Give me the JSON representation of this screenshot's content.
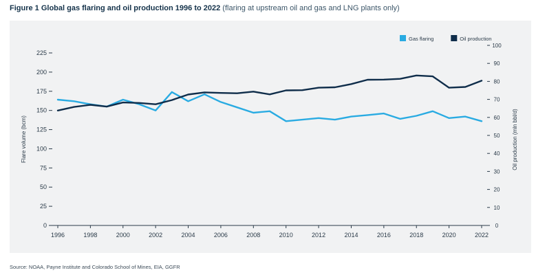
{
  "figure": {
    "title_bold": "Figure 1 Global gas flaring and oil production 1996 to 2022",
    "title_rest": "(flaring at upstream oil and gas and LNG plants only)",
    "source": "Source: NOAA, Payne Institute and Colorado School of Mines, EIA, GGFR"
  },
  "chart_data": {
    "type": "line",
    "x": [
      1996,
      1997,
      1998,
      1999,
      2000,
      2001,
      2002,
      2003,
      2004,
      2005,
      2006,
      2007,
      2008,
      2009,
      2010,
      2011,
      2012,
      2013,
      2014,
      2015,
      2016,
      2017,
      2018,
      2019,
      2020,
      2021,
      2022
    ],
    "x_ticks": [
      "1996",
      "1998",
      "2000",
      "2002",
      "2004",
      "2006",
      "2008",
      "2010",
      "2012",
      "2014",
      "2016",
      "2018",
      "2020",
      "2022"
    ],
    "left_axis": {
      "label": "Flare volume (bcm)",
      "range": [
        0,
        225
      ],
      "ticks": [
        "0",
        "25",
        "50",
        "75",
        "100",
        "125",
        "150",
        "175",
        "200",
        "225"
      ]
    },
    "right_axis": {
      "label": "Oil production (mln bbl/d)",
      "range": [
        0,
        100
      ],
      "ticks": [
        "0",
        "10",
        "20",
        "30",
        "40",
        "50",
        "60",
        "70",
        "80",
        "90",
        "100"
      ]
    },
    "series": [
      {
        "name": "Gas flaring",
        "axis": "left",
        "color": "#29abe2",
        "values": [
          164,
          162,
          158,
          155,
          164,
          158,
          150,
          174,
          162,
          171,
          161,
          154,
          147,
          149,
          136,
          138,
          140,
          138,
          142,
          144,
          146,
          139,
          143,
          149,
          140,
          142,
          136
        ]
      },
      {
        "name": "Oil production",
        "axis": "right",
        "color": "#0f2d4a",
        "values": [
          63.8,
          65.8,
          67.0,
          66.0,
          68.3,
          68.0,
          67.3,
          69.6,
          72.7,
          73.9,
          73.6,
          73.4,
          74.3,
          72.8,
          75.0,
          75.1,
          76.5,
          76.7,
          78.5,
          80.9,
          81.0,
          81.4,
          83.3,
          82.8,
          76.5,
          76.9,
          80.4
        ]
      }
    ],
    "legend_position": "top-right",
    "grid": false
  }
}
